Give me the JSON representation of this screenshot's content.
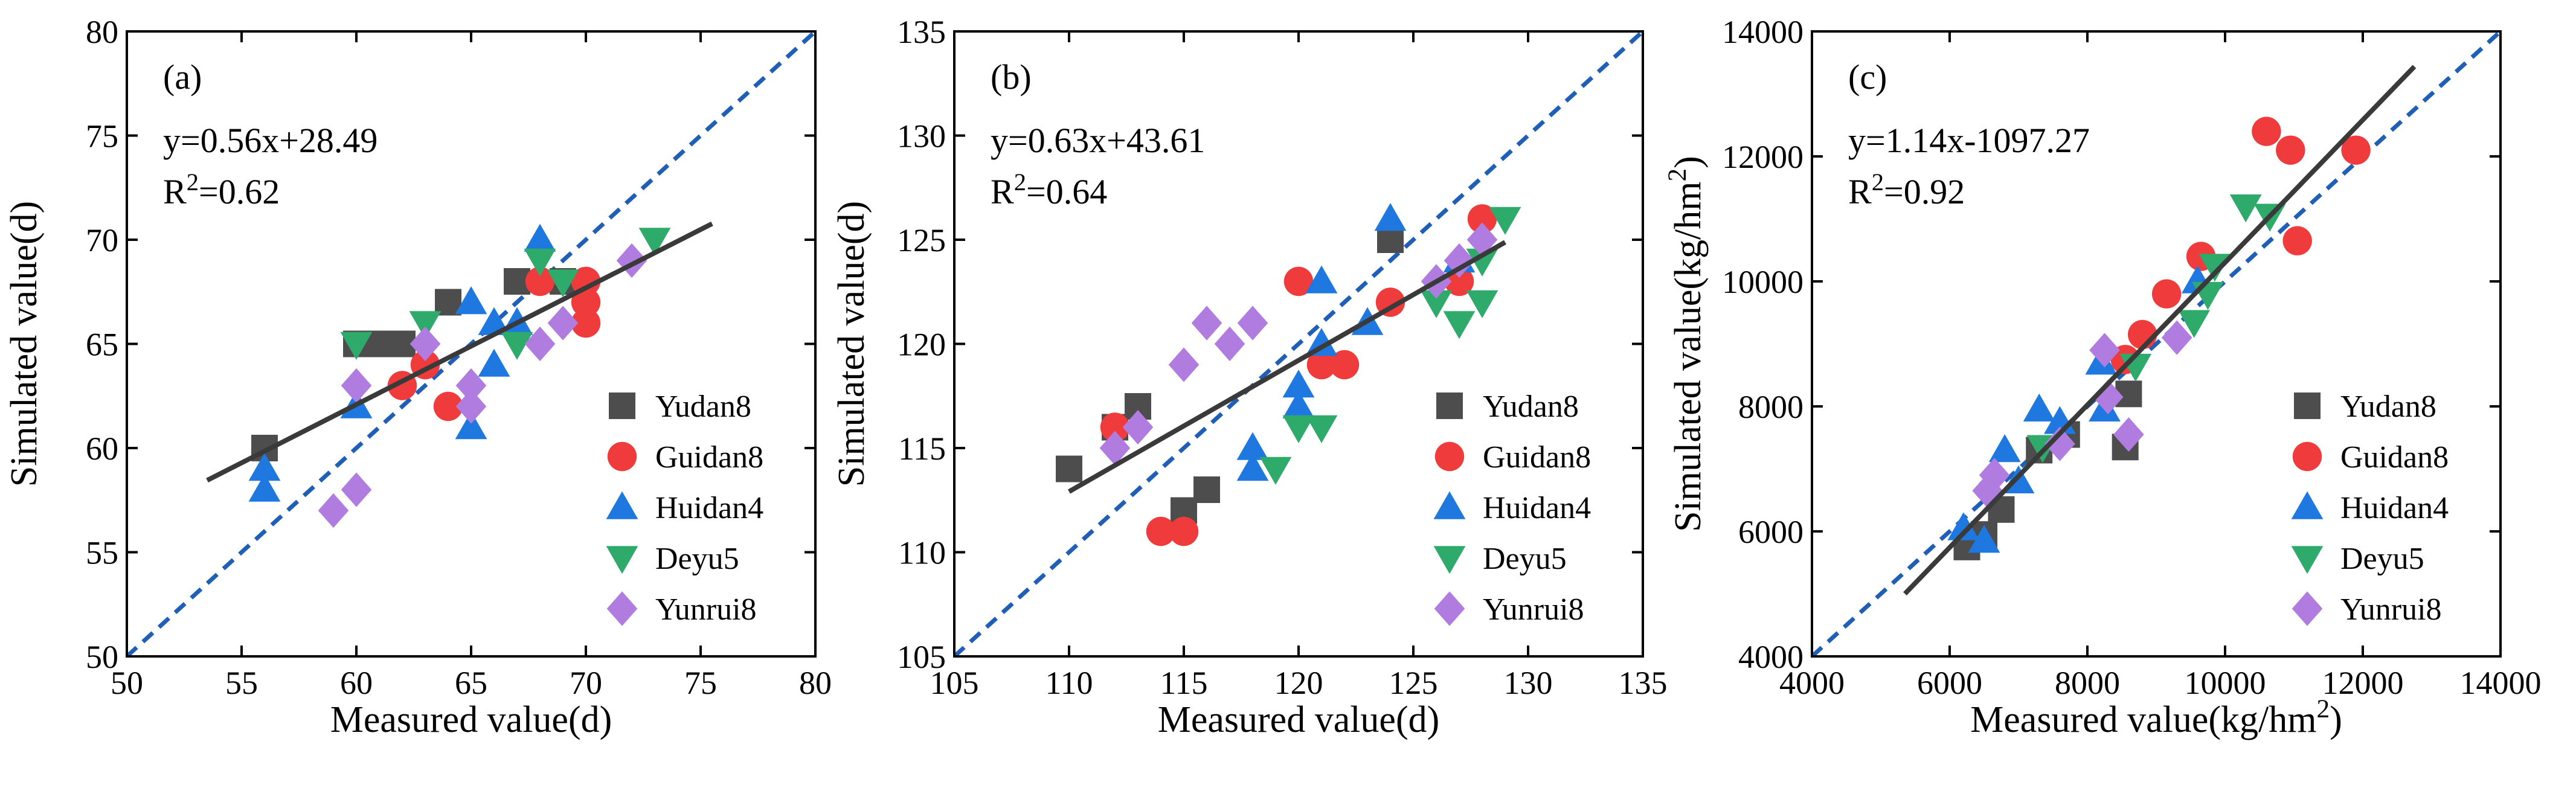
{
  "colors": {
    "Yudan8": "#4d4d4d",
    "Guidan8": "#ef3b3b",
    "Huidan4": "#1f78e0",
    "Deyu5": "#2eaa6a",
    "Yunrui8": "#b07ce0",
    "identity": "#1f5fb5",
    "fit": "#3a3a3a"
  },
  "legend": [
    {
      "name": "Yudan8",
      "marker": "square"
    },
    {
      "name": "Guidan8",
      "marker": "circle"
    },
    {
      "name": "Huidan4",
      "marker": "triangle-up"
    },
    {
      "name": "Deyu5",
      "marker": "triangle-down"
    },
    {
      "name": "Yunrui8",
      "marker": "diamond"
    }
  ],
  "chart_data": [
    {
      "type": "scatter",
      "panel": "(a)",
      "xlabel": "Measured value(d)",
      "ylabel": "Simulated value(d)",
      "xlim": [
        50,
        80
      ],
      "ylim": [
        50,
        80
      ],
      "xticks": [
        50,
        55,
        60,
        65,
        70,
        75,
        80
      ],
      "yticks": [
        50,
        55,
        60,
        65,
        70,
        75,
        80
      ],
      "equation": "y=0.56x+28.49",
      "r2_prefix": "R",
      "r2_sup": "2",
      "r2_value": "=0.62",
      "fit": {
        "slope": 0.56,
        "intercept": 28.49,
        "x_range": [
          53.5,
          75.5
        ]
      },
      "series": [
        {
          "name": "Yudan8",
          "points": [
            [
              56,
              60
            ],
            [
              60,
              65
            ],
            [
              61,
              65
            ],
            [
              62,
              65
            ],
            [
              64,
              67
            ],
            [
              67,
              68
            ],
            [
              69,
              68
            ]
          ]
        },
        {
          "name": "Guidan8",
          "points": [
            [
              62,
              63
            ],
            [
              63,
              64
            ],
            [
              64,
              62
            ],
            [
              68,
              68
            ],
            [
              70,
              68
            ],
            [
              70,
              67
            ],
            [
              70,
              66
            ]
          ]
        },
        {
          "name": "Huidan4",
          "points": [
            [
              56,
              58
            ],
            [
              56,
              59
            ],
            [
              60,
              62
            ],
            [
              65,
              61
            ],
            [
              65,
              67
            ],
            [
              66,
              66
            ],
            [
              66,
              64
            ],
            [
              67,
              66
            ],
            [
              68,
              70
            ]
          ]
        },
        {
          "name": "Deyu5",
          "points": [
            [
              60,
              65
            ],
            [
              63,
              66
            ],
            [
              67,
              65
            ],
            [
              68,
              69
            ],
            [
              69,
              68
            ],
            [
              73,
              70
            ]
          ]
        },
        {
          "name": "Yunrui8",
          "points": [
            [
              59,
              57
            ],
            [
              60,
              58
            ],
            [
              60,
              63
            ],
            [
              63,
              65
            ],
            [
              65,
              63
            ],
            [
              65,
              62
            ],
            [
              68,
              65
            ],
            [
              69,
              66
            ],
            [
              72,
              69
            ]
          ]
        }
      ]
    },
    {
      "type": "scatter",
      "panel": "(b)",
      "xlabel": "Measured value(d)",
      "ylabel": "Simulated value(d)",
      "xlim": [
        105,
        135
      ],
      "ylim": [
        105,
        135
      ],
      "xticks": [
        105,
        110,
        115,
        120,
        125,
        130,
        135
      ],
      "yticks": [
        105,
        110,
        115,
        120,
        125,
        130,
        135
      ],
      "equation": "y=0.63x+43.61",
      "r2_prefix": "R",
      "r2_sup": "2",
      "r2_value": "=0.64",
      "fit": {
        "slope": 0.63,
        "intercept": 43.61,
        "x_range": [
          110,
          129
        ]
      },
      "series": [
        {
          "name": "Yudan8",
          "points": [
            [
              110,
              114
            ],
            [
              112,
              116
            ],
            [
              113,
              117
            ],
            [
              115,
              112
            ],
            [
              116,
              113
            ],
            [
              124,
              125
            ]
          ]
        },
        {
          "name": "Guidan8",
          "points": [
            [
              112,
              116
            ],
            [
              114,
              111
            ],
            [
              115,
              111
            ],
            [
              120,
              123
            ],
            [
              121,
              119
            ],
            [
              122,
              119
            ],
            [
              124,
              122
            ],
            [
              127,
              123
            ],
            [
              128,
              126
            ]
          ]
        },
        {
          "name": "Huidan4",
          "points": [
            [
              118,
              115
            ],
            [
              118,
              114
            ],
            [
              120,
              118
            ],
            [
              120,
              117
            ],
            [
              121,
              120
            ],
            [
              121,
              123
            ],
            [
              123,
              121
            ],
            [
              124,
              126
            ],
            [
              127,
              124
            ]
          ]
        },
        {
          "name": "Deyu5",
          "points": [
            [
              119,
              114
            ],
            [
              120,
              116
            ],
            [
              121,
              116
            ],
            [
              126,
              122
            ],
            [
              127,
              121
            ],
            [
              128,
              122
            ],
            [
              128,
              124
            ],
            [
              129,
              126
            ]
          ]
        },
        {
          "name": "Yunrui8",
          "points": [
            [
              112,
              115
            ],
            [
              113,
              116
            ],
            [
              115,
              119
            ],
            [
              116,
              121
            ],
            [
              117,
              120
            ],
            [
              118,
              121
            ],
            [
              126,
              123
            ],
            [
              127,
              124
            ],
            [
              128,
              125
            ]
          ]
        }
      ]
    },
    {
      "type": "scatter",
      "panel": "(c)",
      "xlabel_prefix": "Measured value(kg/hm",
      "xlabel_sup": "2",
      "xlabel_suffix": ")",
      "ylabel_prefix": "Simulated value(kg/hm",
      "ylabel_sup": "2",
      "ylabel_suffix": ")",
      "xlim": [
        4000,
        14000
      ],
      "ylim": [
        4000,
        14000
      ],
      "xticks": [
        4000,
        6000,
        8000,
        10000,
        12000,
        14000
      ],
      "yticks": [
        4000,
        6000,
        8000,
        10000,
        12000,
        14000
      ],
      "equation": "y=1.14x-1097.27",
      "r2_prefix": "R",
      "r2_sup": "2",
      "r2_value": "=0.92",
      "fit": {
        "slope": 1.14,
        "intercept": -1097.27,
        "x_range": [
          5350,
          12750
        ]
      },
      "series": [
        {
          "name": "Yudan8",
          "points": [
            [
              6250,
              5750
            ],
            [
              6500,
              5950
            ],
            [
              6750,
              6350
            ],
            [
              7300,
              7300
            ],
            [
              7700,
              7550
            ],
            [
              8550,
              7350
            ],
            [
              8600,
              8200
            ]
          ]
        },
        {
          "name": "Guidan8",
          "points": [
            [
              8550,
              8750
            ],
            [
              8800,
              9150
            ],
            [
              9150,
              9800
            ],
            [
              9650,
              10400
            ],
            [
              10600,
              12400
            ],
            [
              10950,
              12100
            ],
            [
              11050,
              10650
            ],
            [
              11900,
              12100
            ]
          ]
        },
        {
          "name": "Huidan4",
          "points": [
            [
              6200,
              6050
            ],
            [
              6500,
              5850
            ],
            [
              6800,
              7300
            ],
            [
              7000,
              6800
            ],
            [
              7300,
              7950
            ],
            [
              7600,
              7750
            ],
            [
              8200,
              8700
            ],
            [
              8250,
              7950
            ],
            [
              9600,
              10000
            ]
          ]
        },
        {
          "name": "Deyu5",
          "points": [
            [
              7350,
              7350
            ],
            [
              8700,
              8650
            ],
            [
              9550,
              9350
            ],
            [
              9750,
              9800
            ],
            [
              9850,
              10250
            ],
            [
              10300,
              11200
            ],
            [
              10650,
              11050
            ]
          ]
        },
        {
          "name": "Yunrui8",
          "points": [
            [
              6550,
              6650
            ],
            [
              6650,
              6900
            ],
            [
              7600,
              7400
            ],
            [
              8250,
              8900
            ],
            [
              8300,
              8150
            ],
            [
              9300,
              9100
            ],
            [
              8600,
              7550
            ]
          ]
        }
      ]
    }
  ]
}
